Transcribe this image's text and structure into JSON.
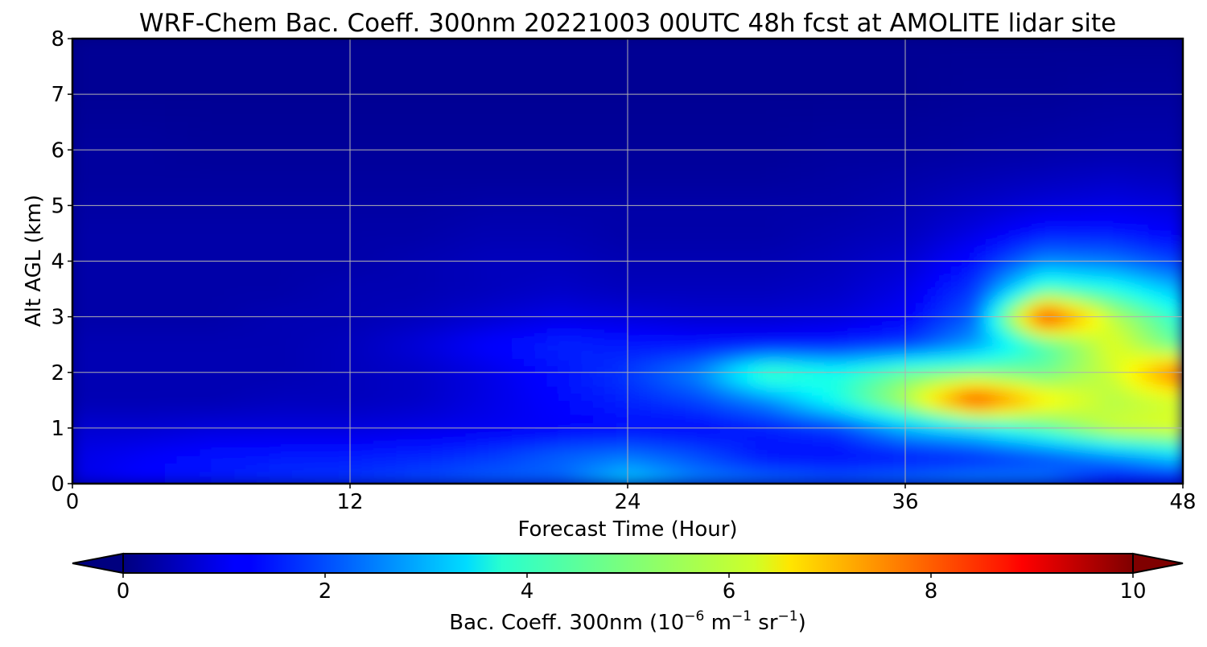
{
  "chart_data": {
    "type": "heatmap",
    "title": "WRF-Chem Bac. Coeff. 300nm  20221003 00UTC 48h fcst at AMOLITE lidar site",
    "xlabel": "Forecast Time (Hour)",
    "ylabel": "Alt AGL (km)",
    "xlim": [
      0,
      48
    ],
    "ylim": [
      0,
      8
    ],
    "x_ticks": [
      0,
      12,
      24,
      36,
      48
    ],
    "y_ticks": [
      0,
      1,
      2,
      3,
      4,
      5,
      6,
      7,
      8
    ],
    "grid": true,
    "colorscale": "jet",
    "colorbar": {
      "label_prefix": "Bac. Coeff. 300nm  (10",
      "exp1": "−6",
      "mid": " m",
      "exp2": "−1",
      "mid2": " sr",
      "exp3": "−1",
      "suffix": ")",
      "range": [
        0,
        10
      ],
      "ticks": [
        0,
        2,
        4,
        6,
        8,
        10
      ],
      "extend": "both"
    },
    "x_hours": [
      0,
      3,
      6,
      9,
      12,
      15,
      18,
      21,
      24,
      27,
      30,
      33,
      36,
      39,
      42,
      45,
      48
    ],
    "z_km": [
      0,
      0.5,
      1.0,
      1.5,
      2.0,
      2.5,
      3.0,
      3.5,
      4.0,
      4.5,
      5.0,
      5.5,
      6.0,
      7.0,
      8.0
    ],
    "values": [
      [
        1.0,
        1.3,
        1.5,
        1.7,
        1.8,
        2.0,
        2.2,
        2.2,
        3.4,
        2.6,
        2.4,
        2.2,
        2.4,
        2.6,
        2.4,
        1.2,
        1.0
      ],
      [
        1.0,
        1.2,
        1.4,
        1.5,
        1.5,
        1.6,
        1.8,
        2.2,
        2.4,
        2.0,
        1.4,
        1.3,
        1.4,
        1.6,
        2.0,
        2.6,
        3.4
      ],
      [
        0.8,
        0.8,
        0.9,
        0.9,
        0.9,
        1.0,
        1.1,
        1.2,
        1.3,
        1.3,
        1.5,
        1.8,
        3.0,
        3.6,
        4.6,
        5.8,
        6.0
      ],
      [
        0.5,
        0.5,
        0.5,
        0.6,
        0.6,
        0.7,
        1.0,
        1.3,
        1.6,
        1.9,
        2.6,
        4.0,
        5.6,
        8.4,
        6.5,
        5.5,
        5.8
      ],
      [
        0.5,
        0.5,
        0.5,
        0.5,
        0.6,
        0.7,
        1.0,
        1.4,
        1.8,
        2.6,
        4.6,
        4.0,
        4.8,
        5.0,
        4.8,
        5.8,
        8.0
      ],
      [
        0.5,
        0.5,
        0.5,
        0.5,
        0.6,
        0.9,
        1.3,
        1.6,
        1.5,
        1.4,
        1.4,
        1.5,
        1.8,
        2.8,
        4.4,
        6.0,
        4.6
      ],
      [
        0.4,
        0.4,
        0.4,
        0.5,
        0.5,
        0.6,
        0.8,
        1.0,
        0.9,
        0.8,
        0.8,
        0.9,
        1.2,
        2.2,
        8.6,
        5.6,
        4.0
      ],
      [
        0.4,
        0.4,
        0.4,
        0.4,
        0.5,
        0.5,
        0.6,
        0.7,
        0.6,
        0.6,
        0.6,
        0.7,
        1.0,
        1.8,
        4.5,
        4.0,
        3.0
      ],
      [
        0.4,
        0.4,
        0.4,
        0.4,
        0.4,
        0.5,
        0.6,
        0.6,
        0.5,
        0.5,
        0.5,
        0.6,
        0.8,
        1.4,
        2.6,
        2.4,
        1.8
      ],
      [
        0.4,
        0.4,
        0.4,
        0.4,
        0.4,
        0.4,
        0.5,
        0.5,
        0.4,
        0.4,
        0.4,
        0.5,
        0.6,
        1.0,
        1.5,
        1.5,
        1.2
      ],
      [
        0.35,
        0.35,
        0.35,
        0.35,
        0.35,
        0.35,
        0.4,
        0.4,
        0.4,
        0.4,
        0.4,
        0.4,
        0.5,
        0.7,
        0.9,
        1.0,
        0.9
      ],
      [
        0.3,
        0.3,
        0.3,
        0.3,
        0.3,
        0.3,
        0.3,
        0.3,
        0.3,
        0.3,
        0.3,
        0.35,
        0.4,
        0.5,
        0.6,
        0.7,
        0.6
      ],
      [
        0.3,
        0.3,
        0.25,
        0.25,
        0.25,
        0.25,
        0.25,
        0.25,
        0.25,
        0.25,
        0.25,
        0.3,
        0.3,
        0.35,
        0.4,
        0.45,
        0.45
      ],
      [
        0.2,
        0.2,
        0.2,
        0.2,
        0.2,
        0.2,
        0.2,
        0.2,
        0.2,
        0.2,
        0.2,
        0.2,
        0.2,
        0.25,
        0.25,
        0.3,
        0.3
      ],
      [
        0.2,
        0.2,
        0.2,
        0.2,
        0.2,
        0.2,
        0.2,
        0.2,
        0.2,
        0.2,
        0.2,
        0.2,
        0.2,
        0.2,
        0.2,
        0.2,
        0.2
      ]
    ]
  }
}
